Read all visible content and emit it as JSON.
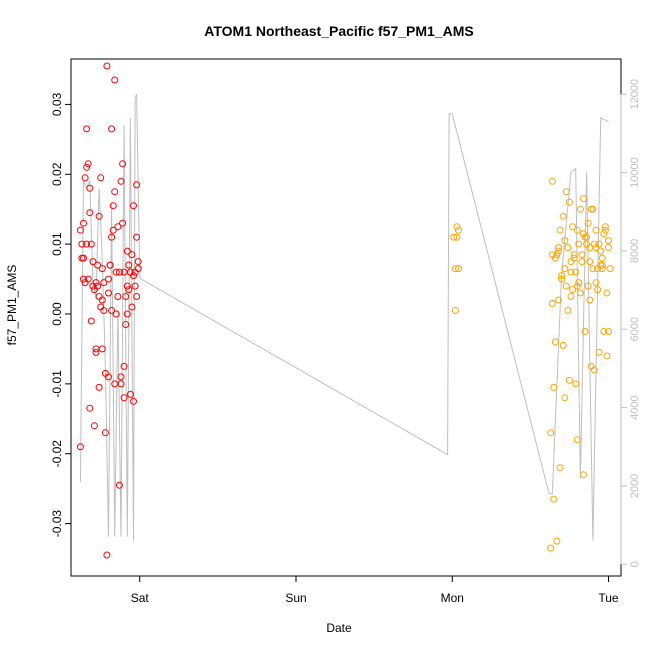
{
  "chart_data": {
    "type": "scatter",
    "title": "ATOM1 Northeast_Pacific f57_PM1_AMS",
    "xlabel": "Date",
    "ylabel": "f57_PM1_AMS",
    "x_ticks": [
      {
        "label": "Sat",
        "value": 1.0
      },
      {
        "label": "Sun",
        "value": 2.0
      },
      {
        "label": "Mon",
        "value": 3.0
      },
      {
        "label": "Tue",
        "value": 4.0
      }
    ],
    "y_ticks": [
      -0.03,
      -0.02,
      -0.01,
      0.0,
      0.01,
      0.02,
      0.03
    ],
    "y_tick_labels": [
      "-0.03",
      "-0.02",
      "-0.01",
      "0.00",
      "0.01",
      "0.02",
      "0.03"
    ],
    "y2_ticks": [
      0,
      2000,
      4000,
      6000,
      8000,
      10000,
      12000
    ],
    "y2_tick_labels": [
      "0",
      "2000",
      "4000",
      "6000",
      "8000",
      "10000",
      "12000"
    ],
    "xlim": [
      0.56,
      4.08
    ],
    "ylim": [
      -0.0375,
      0.0365
    ],
    "y2lim": [
      -300,
      12900
    ],
    "colors": {
      "series_1": "#ff0000",
      "series_2": "#ffa500",
      "line": "#bebebe",
      "axis": "#000000",
      "axis2": "#bebebe"
    },
    "series": [
      {
        "marker": "circle-open",
        "color": "#ff0000",
        "x": [
          0.62,
          0.63,
          0.64,
          0.65,
          0.66,
          0.67,
          0.68,
          0.69,
          0.7,
          0.71,
          0.72,
          0.73,
          0.74,
          0.75,
          0.76,
          0.77,
          0.78,
          0.79,
          0.8,
          0.81,
          0.82,
          0.83,
          0.84,
          0.85,
          0.86,
          0.87,
          0.88,
          0.89,
          0.9,
          0.91,
          0.92,
          0.93,
          0.94,
          0.95,
          0.96,
          0.97,
          0.98,
          0.99,
          0.62,
          0.64,
          0.66,
          0.68,
          0.7,
          0.72,
          0.74,
          0.76,
          0.78,
          0.8,
          0.82,
          0.84,
          0.86,
          0.88,
          0.9,
          0.92,
          0.94,
          0.96,
          0.98,
          0.63,
          0.65,
          0.67,
          0.69,
          0.71,
          0.73,
          0.75,
          0.77,
          0.79,
          0.81,
          0.83,
          0.85,
          0.87,
          0.89,
          0.91,
          0.93,
          0.95,
          0.97,
          0.99,
          0.64,
          0.68,
          0.72,
          0.76,
          0.8,
          0.84,
          0.88,
          0.92,
          0.96,
          0.66,
          0.74,
          0.82,
          0.9,
          0.98
        ],
        "y": [
          0.012,
          0.008,
          0.005,
          0.0195,
          0.0265,
          0.0215,
          0.0145,
          0.01,
          0.004,
          0.0035,
          -0.0055,
          0.007,
          -0.0105,
          0.0195,
          0.0065,
          0.0045,
          -0.0085,
          0.0355,
          0.003,
          0.007,
          0.0265,
          0.0155,
          0.0335,
          0.006,
          0.0125,
          0.006,
          -0.009,
          0.0215,
          -0.0075,
          0.0025,
          0.009,
          0.0035,
          -0.0115,
          0.0085,
          0.0055,
          0.006,
          0.011,
          0.0065,
          -0.019,
          0.008,
          0.01,
          -0.0135,
          0.0075,
          -0.005,
          0.0025,
          -0.005,
          -0.017,
          0.005,
          0.0005,
          -0.01,
          0.0025,
          0.019,
          -0.012,
          0.004,
          0.006,
          0.0155,
          0.0185,
          0.01,
          0.0045,
          0.005,
          -0.001,
          -0.016,
          0.004,
          0.001,
          0.0005,
          -0.0345,
          0.007,
          0.012,
          0.0,
          -0.0245,
          0.013,
          -0.0015,
          0.007,
          0.001,
          0.004,
          0.0075,
          0.013,
          0.018,
          0.0045,
          0.002,
          -0.009,
          0.0175,
          -0.01,
          0.0,
          -0.0125,
          0.021,
          0.014,
          0.011,
          0.006,
          0.0025
        ]
      },
      {
        "marker": "circle-open",
        "color": "#ffa500",
        "x": [
          3.01,
          3.02,
          3.03,
          3.04,
          3.02,
          3.03,
          3.04,
          3.63,
          3.64,
          3.65,
          3.66,
          3.67,
          3.68,
          3.69,
          3.7,
          3.71,
          3.72,
          3.73,
          3.74,
          3.75,
          3.76,
          3.77,
          3.78,
          3.79,
          3.8,
          3.81,
          3.82,
          3.83,
          3.84,
          3.85,
          3.86,
          3.87,
          3.88,
          3.89,
          3.9,
          3.91,
          3.92,
          3.93,
          3.94,
          3.95,
          3.96,
          3.97,
          3.98,
          3.99,
          4.0,
          4.01,
          3.63,
          3.65,
          3.67,
          3.69,
          3.71,
          3.73,
          3.75,
          3.77,
          3.79,
          3.81,
          3.83,
          3.85,
          3.87,
          3.89,
          3.91,
          3.93,
          3.95,
          3.97,
          3.99,
          3.64,
          3.66,
          3.68,
          3.7,
          3.72,
          3.74,
          3.76,
          3.78,
          3.8,
          3.82,
          3.84,
          3.86,
          3.88,
          3.9,
          3.92,
          3.94,
          3.96,
          3.98,
          4.0,
          3.64,
          3.68,
          3.72,
          3.76,
          3.8,
          3.84,
          3.88,
          3.92,
          3.96,
          4.0
        ],
        "y": [
          0.011,
          0.0065,
          0.0125,
          0.0065,
          0.0005,
          0.011,
          0.012,
          -0.0335,
          0.0085,
          -0.0265,
          0.008,
          -0.0325,
          0.0095,
          0.012,
          0.005,
          -0.0045,
          0.0065,
          0.0175,
          0.0095,
          -0.0095,
          0.0075,
          0.0125,
          0.008,
          0.006,
          -0.018,
          0.01,
          0.015,
          0.0085,
          0.0165,
          -0.0025,
          0.01,
          0.004,
          0.0095,
          -0.0075,
          0.0065,
          0.01,
          0.012,
          0.0035,
          -0.0055,
          0.009,
          0.0065,
          0.0115,
          0.0125,
          0.003,
          0.0105,
          0.0065,
          -0.017,
          -0.0105,
          0.0085,
          -0.022,
          0.014,
          0.004,
          0.016,
          0.0035,
          -0.01,
          0.0045,
          0.0075,
          0.011,
          0.013,
          0.015,
          -0.008,
          0.0065,
          0.007,
          -0.0025,
          -0.006,
          0.0015,
          -0.004,
          0.002,
          0.0055,
          -0.012,
          0.0005,
          0.0025,
          0.0085,
          0.012,
          0.003,
          -0.023,
          0.011,
          0.0075,
          0.015,
          0.0045,
          0.01,
          0.008,
          0.012,
          -0.0025,
          0.019,
          0.009,
          0.0105,
          0.006,
          0.004,
          0.0115,
          0.002,
          0.0095,
          0.007,
          0.0095
        ]
      }
    ],
    "line_series": {
      "axis": "right",
      "color": "#bebebe",
      "x": [
        0.62,
        0.64,
        0.66,
        0.68,
        0.7,
        0.72,
        0.74,
        0.76,
        0.78,
        0.8,
        0.82,
        0.84,
        0.86,
        0.88,
        0.9,
        0.92,
        0.94,
        0.96,
        0.97,
        0.98,
        1.0,
        2.97,
        2.98,
        3.0,
        3.62,
        3.64,
        3.7,
        3.76,
        3.79,
        3.82,
        3.86,
        3.9,
        3.95,
        4.0
      ],
      "y": [
        2100,
        9800,
        9600,
        9800,
        7200,
        6800,
        9600,
        7800,
        5000,
        700,
        9200,
        700,
        6500,
        700,
        11200,
        700,
        11400,
        600,
        11900,
        12000,
        7300,
        2800,
        11500,
        11500,
        1800,
        1800,
        7400,
        10000,
        10100,
        2200,
        10000,
        600,
        11400,
        11300
      ]
    }
  }
}
